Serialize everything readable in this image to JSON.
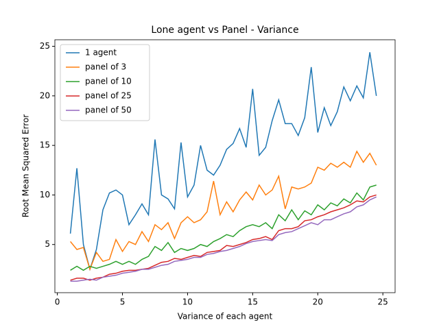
{
  "chart_data": {
    "type": "line",
    "title": "Lone agent vs Panel - Variance",
    "xlabel": "Variance of each agent",
    "ylabel": "Root Mean Squared Error",
    "x": [
      1,
      1.5,
      2,
      2.5,
      3,
      3.5,
      4,
      4.5,
      5,
      5.5,
      6,
      6.5,
      7,
      7.5,
      8,
      8.5,
      9,
      9.5,
      10,
      10.5,
      11,
      11.5,
      12,
      12.5,
      13,
      13.5,
      14,
      14.5,
      15,
      15.5,
      16,
      16.5,
      17,
      17.5,
      18,
      18.5,
      19,
      19.5,
      20,
      20.5,
      21,
      21.5,
      22,
      22.5,
      23,
      23.5,
      24,
      24.5
    ],
    "series": [
      {
        "name": "1 agent",
        "color": "#1f77b4",
        "values": [
          6.1,
          12.7,
          5.0,
          2.5,
          4.5,
          8.5,
          10.2,
          10.5,
          10.0,
          7.0,
          8.0,
          9.1,
          8.0,
          15.6,
          10.0,
          9.6,
          8.6,
          15.3,
          9.8,
          11.0,
          15.0,
          12.5,
          12.0,
          13.0,
          14.6,
          15.2,
          16.7,
          14.8,
          20.7,
          14.0,
          14.8,
          17.5,
          19.6,
          17.2,
          17.2,
          16.0,
          17.8,
          22.9,
          16.3,
          18.8,
          17.0,
          18.4,
          20.9,
          19.5,
          21.0,
          19.8,
          24.4,
          20.0
        ]
      },
      {
        "name": "panel of 3",
        "color": "#ff7f0e",
        "values": [
          5.3,
          4.5,
          4.7,
          2.5,
          4.2,
          3.3,
          3.5,
          5.5,
          4.3,
          5.3,
          5.0,
          6.3,
          5.3,
          7.0,
          6.5,
          7.2,
          5.6,
          7.2,
          7.8,
          7.2,
          7.5,
          8.3,
          11.4,
          8.0,
          9.3,
          8.3,
          9.5,
          10.3,
          9.5,
          11.0,
          10.0,
          10.5,
          11.9,
          8.6,
          10.8,
          10.6,
          10.8,
          11.2,
          12.8,
          12.5,
          13.2,
          12.8,
          13.3,
          12.8,
          14.4,
          13.3,
          14.2,
          13.0
        ]
      },
      {
        "name": "panel of 10",
        "color": "#2ca02c",
        "values": [
          2.4,
          2.8,
          2.4,
          2.8,
          2.6,
          2.8,
          3.0,
          3.3,
          3.0,
          3.3,
          3.0,
          3.5,
          3.8,
          4.8,
          4.4,
          5.2,
          4.2,
          4.6,
          4.4,
          4.6,
          5.0,
          4.8,
          5.3,
          5.6,
          6.0,
          5.8,
          6.4,
          6.8,
          7.0,
          6.8,
          7.2,
          6.6,
          8.0,
          7.4,
          8.5,
          7.5,
          8.4,
          8.0,
          9.0,
          8.5,
          9.2,
          8.9,
          9.6,
          9.2,
          10.2,
          9.5,
          10.8,
          11.0
        ]
      },
      {
        "name": "panel of 25",
        "color": "#d62728",
        "values": [
          1.4,
          1.6,
          1.6,
          1.4,
          1.6,
          1.7,
          2.0,
          2.1,
          2.3,
          2.4,
          2.4,
          2.5,
          2.6,
          2.9,
          3.2,
          3.3,
          3.6,
          3.5,
          3.7,
          3.9,
          3.8,
          4.2,
          4.3,
          4.4,
          4.9,
          4.8,
          5.0,
          5.2,
          5.5,
          5.6,
          5.8,
          5.5,
          6.4,
          6.6,
          6.6,
          6.8,
          7.4,
          7.5,
          7.8,
          8.0,
          8.3,
          8.5,
          8.7,
          9.0,
          9.4,
          9.3,
          9.8,
          10.0
        ]
      },
      {
        "name": "panel of 50",
        "color": "#9467bd",
        "values": [
          1.3,
          1.3,
          1.4,
          1.5,
          1.4,
          1.7,
          1.8,
          1.9,
          2.1,
          2.2,
          2.3,
          2.5,
          2.5,
          2.7,
          2.9,
          3.0,
          3.3,
          3.4,
          3.5,
          3.7,
          3.7,
          4.0,
          4.1,
          4.3,
          4.4,
          4.6,
          4.8,
          5.1,
          5.3,
          5.4,
          5.5,
          5.4,
          6.0,
          6.2,
          6.3,
          6.6,
          6.9,
          7.2,
          7.0,
          7.5,
          7.5,
          7.8,
          8.1,
          8.3,
          8.8,
          9.0,
          9.5,
          9.8
        ]
      }
    ],
    "xlim": [
      -0.19,
      25.94
    ],
    "xticks": [
      0,
      5,
      10,
      15,
      20,
      25
    ],
    "ylim": [
      0.14,
      25.66
    ],
    "yticks": [
      5,
      10,
      15,
      20,
      25
    ],
    "legend": "upper left"
  }
}
